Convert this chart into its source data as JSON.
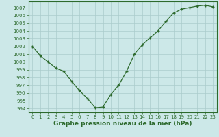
{
  "x": [
    0,
    1,
    2,
    3,
    4,
    5,
    6,
    7,
    8,
    9,
    10,
    11,
    12,
    13,
    14,
    15,
    16,
    17,
    18,
    19,
    20,
    21,
    22,
    23
  ],
  "y": [
    1002,
    1000.8,
    1000,
    999.2,
    998.8,
    997.5,
    996.3,
    995.3,
    994.1,
    994.2,
    995.8,
    997.0,
    998.8,
    1001.0,
    1002.2,
    1003.1,
    1004.0,
    1005.2,
    1006.3,
    1006.8,
    1007.0,
    1007.2,
    1007.3,
    1007.1
  ],
  "line_color": "#2d6a2d",
  "marker": "+",
  "bg_color": "#cce8e8",
  "grid_color": "#aacccc",
  "xlabel": "Graphe pression niveau de la mer (hPa)",
  "ylim": [
    993.5,
    1007.8
  ],
  "yticks": [
    994,
    995,
    996,
    997,
    998,
    999,
    1000,
    1001,
    1002,
    1003,
    1004,
    1005,
    1006,
    1007
  ],
  "xlim": [
    -0.5,
    23.5
  ],
  "xticks": [
    0,
    1,
    2,
    3,
    4,
    5,
    6,
    7,
    8,
    9,
    10,
    11,
    12,
    13,
    14,
    15,
    16,
    17,
    18,
    19,
    20,
    21,
    22,
    23
  ],
  "tick_fontsize": 5.0,
  "xlabel_fontsize": 6.5,
  "xlabel_bold": true,
  "axis_color": "#2d6a2d",
  "text_color": "#2d6a2d"
}
